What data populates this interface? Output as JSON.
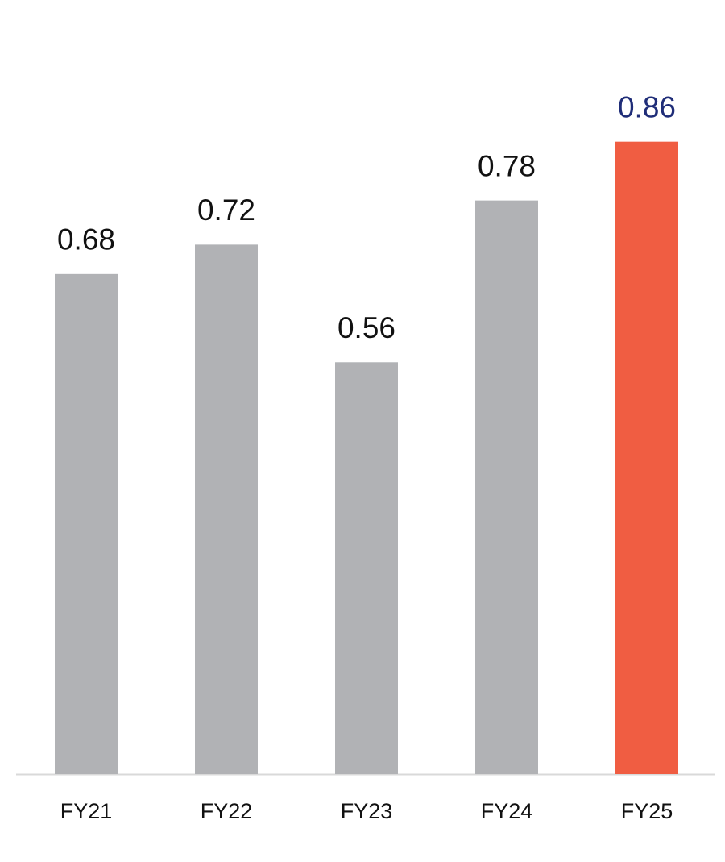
{
  "chart_data": {
    "type": "bar",
    "categories": [
      "FY21",
      "FY22",
      "FY23",
      "FY24",
      "FY25"
    ],
    "values": [
      0.68,
      0.72,
      0.56,
      0.78,
      0.86
    ],
    "colors": [
      "#b1b2b5",
      "#b1b2b5",
      "#b1b2b5",
      "#b1b2b5",
      "#f05d42"
    ],
    "label_colors": [
      "#111111",
      "#111111",
      "#111111",
      "#111111",
      "#1f2d78"
    ],
    "ylim": [
      0,
      1
    ]
  }
}
